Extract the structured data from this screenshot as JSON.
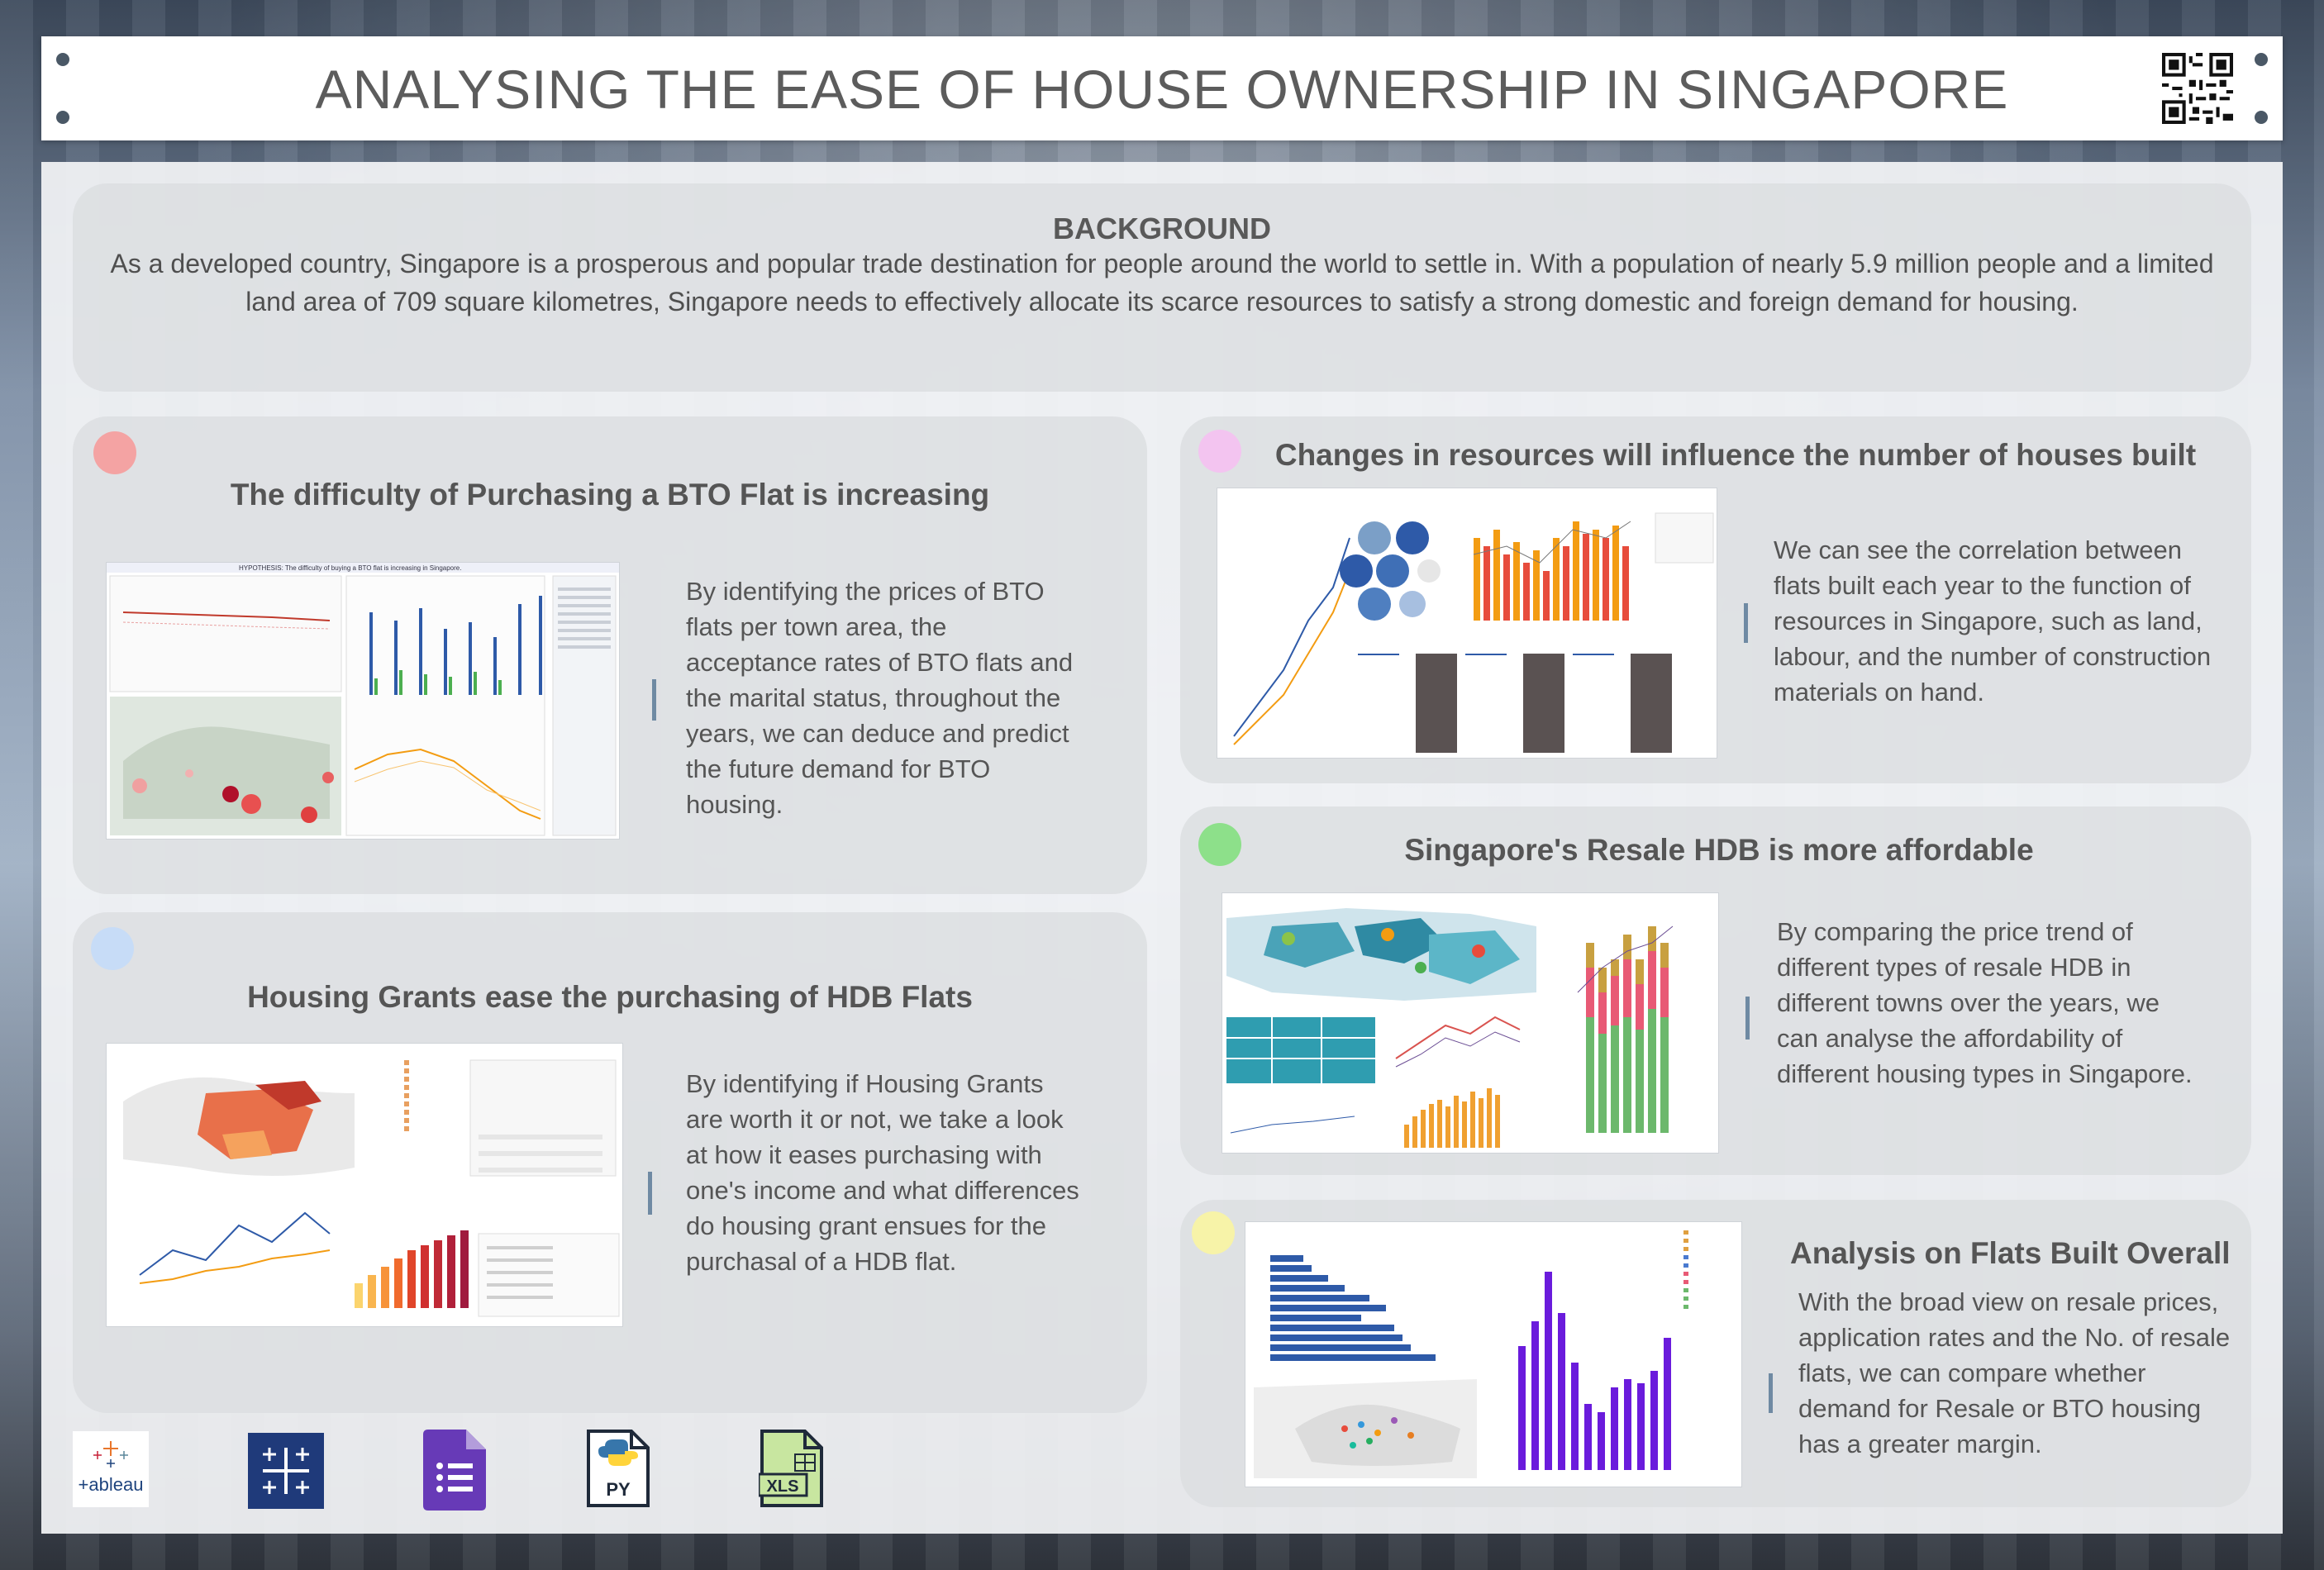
{
  "header": {
    "title": "ANALYSING THE EASE OF HOUSE OWNERSHIP IN SINGAPORE"
  },
  "background": {
    "title": "BACKGROUND",
    "text": "As a developed country, Singapore is a prosperous and popular trade destination for people around the world to settle in.  With a population of nearly 5.9 million people and a limited land area of 709 square kilometres, Singapore needs to effectively allocate its scarce resources to satisfy a strong domestic and foreign demand for housing."
  },
  "sections": {
    "bto": {
      "title": "The difficulty of Purchasing a BTO Flat is increasing",
      "text": "By identifying the prices of BTO flats per town area, the acceptance rates of BTO flats and the marital status, throughout the years, we can deduce and predict the future demand for BTO housing.",
      "dot_color": "#f4a3a3"
    },
    "grants": {
      "title": "Housing Grants ease the purchasing of HDB Flats",
      "text": "By identifying if Housing Grants are worth it or not, we take a look at how it eases purchasing with one's income and what differences do housing grant ensues for the purchasal of a HDB flat.",
      "dot_color": "#c7dcf7"
    },
    "resources": {
      "title": "Changes in resources will influence the number of houses built",
      "text": "We can see the correlation between flats built each year to the function of resources in Singapore, such as land, labour, and the number of construction materials on hand.",
      "dot_color": "#f3c4f0"
    },
    "resale": {
      "title": "Singapore's Resale HDB is more affordable",
      "text": "By comparing the price trend of different types of resale HDB in different towns over the years, we can analyse the affordability of different housing types in Singapore.",
      "dot_color": "#8de08a"
    },
    "overall": {
      "title": "Analysis on Flats Built Overall",
      "text": "With the broad view on resale prices, application rates and the No. of resale flats, we can compare whether demand for Resale or BTO housing has a greater margin.",
      "dot_color": "#f7f3a8"
    }
  },
  "logos": {
    "tableau_label": "+ableau",
    "python_label": "PY",
    "excel_label": "XLS"
  },
  "icons": [
    "qr-code-icon",
    "tableau-logo-icon",
    "tableau-cross-icon",
    "google-forms-icon",
    "python-file-icon",
    "excel-file-icon"
  ]
}
